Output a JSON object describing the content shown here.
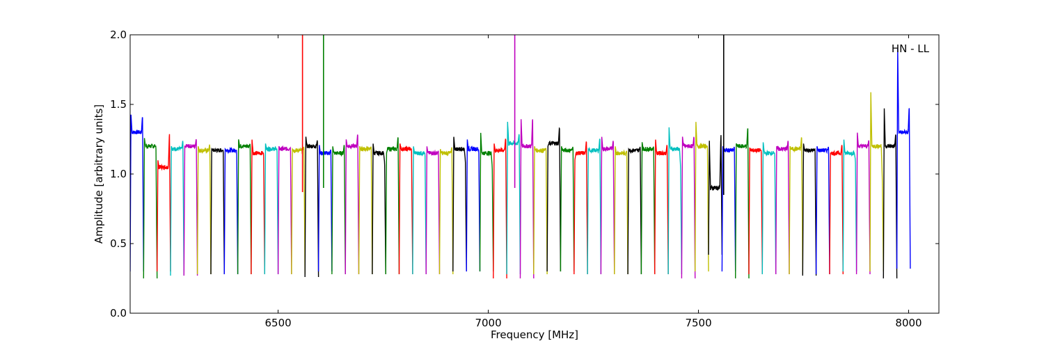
{
  "chart_data": {
    "type": "line",
    "title": "",
    "annotation": "HN - LL",
    "xlabel": "Frequency [MHz]",
    "ylabel": "Amplitude [arbitrary units]",
    "xlim": [
      6148,
      8072
    ],
    "ylim": [
      0.0,
      2.0
    ],
    "xticks": [
      6500,
      7000,
      7500,
      8000
    ],
    "xtick_labels": [
      "6500",
      "7000",
      "7500",
      "8000"
    ],
    "yticks": [
      0.0,
      0.5,
      1.0,
      1.5,
      2.0
    ],
    "ytick_labels": [
      "0.0",
      "0.5",
      "1.0",
      "1.5",
      "2.0"
    ],
    "grid": false,
    "legend": "none",
    "color_cycle": [
      "#0000ff",
      "#007f00",
      "#ff0000",
      "#00bfbf",
      "#bf00bf",
      "#bfbf00",
      "#000000"
    ],
    "channel_width_mhz": 32,
    "channels": [
      {
        "start": 6148,
        "color": "#0000ff",
        "peak_left": 1.43,
        "peak_right": 1.43,
        "plateau": 1.3,
        "min": 0.3
      },
      {
        "start": 6180,
        "color": "#007f00",
        "peak_left": 1.26,
        "peak_right": 1.2,
        "plateau": 1.2,
        "min": 0.25
      },
      {
        "start": 6212,
        "color": "#ff0000",
        "peak_left": 1.1,
        "peak_right": 1.31,
        "plateau": 1.05,
        "min": 0.3
      },
      {
        "start": 6244,
        "color": "#00bfbf",
        "peak_left": 1.2,
        "peak_right": 1.25,
        "plateau": 1.18,
        "min": 0.27
      },
      {
        "start": 6276,
        "color": "#bf00bf",
        "peak_left": 1.2,
        "peak_right": 1.26,
        "plateau": 1.2,
        "min": 0.27
      },
      {
        "start": 6308,
        "color": "#bfbf00",
        "peak_left": 1.2,
        "peak_right": 1.22,
        "plateau": 1.17,
        "min": 0.28
      },
      {
        "start": 6340,
        "color": "#000000",
        "peak_left": 1.18,
        "peak_right": 1.17,
        "plateau": 1.17,
        "min": 0.28
      },
      {
        "start": 6372,
        "color": "#0000ff",
        "peak_left": 1.18,
        "peak_right": 1.17,
        "plateau": 1.17,
        "min": 0.28
      },
      {
        "start": 6404,
        "color": "#007f00",
        "peak_left": 1.25,
        "peak_right": 1.22,
        "plateau": 1.2,
        "min": 0.28
      },
      {
        "start": 6436,
        "color": "#ff0000",
        "peak_left": 1.25,
        "peak_right": 1.15,
        "plateau": 1.15,
        "min": 0.28
      },
      {
        "start": 6468,
        "color": "#00bfbf",
        "peak_left": 1.22,
        "peak_right": 1.18,
        "plateau": 1.18,
        "min": 0.28
      },
      {
        "start": 6500,
        "color": "#bf00bf",
        "peak_left": 1.2,
        "peak_right": 1.19,
        "plateau": 1.18,
        "min": 0.28
      },
      {
        "start": 6532,
        "color": "#bfbf00",
        "peak_left": 1.18,
        "peak_right": 1.2,
        "plateau": 1.17,
        "min": 0.28
      },
      {
        "start": 6564,
        "color": "#000000",
        "peak_left": 1.27,
        "peak_right": 1.25,
        "plateau": 1.2,
        "min": 0.26
      },
      {
        "start": 6596,
        "color": "#0000ff",
        "peak_left": 1.21,
        "peak_right": 1.18,
        "plateau": 1.15,
        "min": 0.3
      },
      {
        "start": 6628,
        "color": "#007f00",
        "peak_left": 1.2,
        "peak_right": 1.22,
        "plateau": 1.15,
        "min": 0.28
      },
      {
        "start": 6660,
        "color": "#bf00bf",
        "peak_left": 1.25,
        "peak_right": 1.3,
        "plateau": 1.2,
        "min": 0.28
      },
      {
        "start": 6692,
        "color": "#bfbf00",
        "peak_left": 1.2,
        "peak_right": 1.2,
        "plateau": 1.18,
        "min": 0.28
      },
      {
        "start": 6724,
        "color": "#000000",
        "peak_left": 1.22,
        "peak_right": 1.08,
        "plateau": 1.15,
        "min": 0.28
      },
      {
        "start": 6756,
        "color": "#007f00",
        "peak_left": 1.15,
        "peak_right": 1.28,
        "plateau": 1.18,
        "min": 0.28
      },
      {
        "start": 6788,
        "color": "#ff0000",
        "peak_left": 1.22,
        "peak_right": 1.18,
        "plateau": 1.18,
        "min": 0.28
      },
      {
        "start": 6820,
        "color": "#00bfbf",
        "peak_left": 1.2,
        "peak_right": 1.15,
        "plateau": 1.15,
        "min": 0.28
      },
      {
        "start": 6852,
        "color": "#bf00bf",
        "peak_left": 1.2,
        "peak_right": 1.17,
        "plateau": 1.15,
        "min": 0.28
      },
      {
        "start": 6884,
        "color": "#bfbf00",
        "peak_left": 1.18,
        "peak_right": 1.2,
        "plateau": 1.15,
        "min": 0.28
      },
      {
        "start": 6916,
        "color": "#000000",
        "peak_left": 1.27,
        "peak_right": 1.1,
        "plateau": 1.18,
        "min": 0.3
      },
      {
        "start": 6948,
        "color": "#0000ff",
        "peak_left": 1.25,
        "peak_right": 1.17,
        "plateau": 1.18,
        "min": 0.3
      },
      {
        "start": 6980,
        "color": "#007f00",
        "peak_left": 1.3,
        "peak_right": 1.05,
        "plateau": 1.15,
        "min": 0.3
      },
      {
        "start": 7012,
        "color": "#ff0000",
        "peak_left": 1.22,
        "peak_right": 1.27,
        "plateau": 1.17,
        "min": 0.25
      },
      {
        "start": 7044,
        "color": "#00bfbf",
        "peak_left": 1.38,
        "peak_right": 1.3,
        "plateau": 1.22,
        "min": 0.28
      },
      {
        "start": 7076,
        "color": "#bf00bf",
        "peak_left": 1.4,
        "peak_right": 1.42,
        "plateau": 1.2,
        "min": 0.25
      },
      {
        "start": 7108,
        "color": "#bfbf00",
        "peak_left": 1.2,
        "peak_right": 1.19,
        "plateau": 1.17,
        "min": 0.28
      },
      {
        "start": 7140,
        "color": "#000000",
        "peak_left": 1.2,
        "peak_right": 1.35,
        "plateau": 1.22,
        "min": 0.3
      },
      {
        "start": 7172,
        "color": "#007f00",
        "peak_left": 1.2,
        "peak_right": 1.2,
        "plateau": 1.17,
        "min": 0.3
      },
      {
        "start": 7204,
        "color": "#ff0000",
        "peak_left": 1.1,
        "peak_right": 1.25,
        "plateau": 1.15,
        "min": 0.28
      },
      {
        "start": 7236,
        "color": "#00bfbf",
        "peak_left": 1.18,
        "peak_right": 1.27,
        "plateau": 1.17,
        "min": 0.28
      },
      {
        "start": 7268,
        "color": "#bf00bf",
        "peak_left": 1.27,
        "peak_right": 1.25,
        "plateau": 1.18,
        "min": 0.28
      },
      {
        "start": 7300,
        "color": "#bfbf00",
        "peak_left": 1.2,
        "peak_right": 1.17,
        "plateau": 1.15,
        "min": 0.28
      },
      {
        "start": 7332,
        "color": "#000000",
        "peak_left": 1.18,
        "peak_right": 1.2,
        "plateau": 1.17,
        "min": 0.28
      },
      {
        "start": 7364,
        "color": "#007f00",
        "peak_left": 1.23,
        "peak_right": 1.2,
        "plateau": 1.18,
        "min": 0.28
      },
      {
        "start": 7396,
        "color": "#ff0000",
        "peak_left": 1.25,
        "peak_right": 1.22,
        "plateau": 1.15,
        "min": 0.28
      },
      {
        "start": 7428,
        "color": "#00bfbf",
        "peak_left": 1.34,
        "peak_right": 1.05,
        "plateau": 1.18,
        "min": 0.28
      },
      {
        "start": 7460,
        "color": "#bf00bf",
        "peak_left": 1.27,
        "peak_right": 1.28,
        "plateau": 1.2,
        "min": 0.25
      },
      {
        "start": 7492,
        "color": "#bfbf00",
        "peak_left": 1.38,
        "peak_right": 1.2,
        "plateau": 1.2,
        "min": 0.3
      },
      {
        "start": 7524,
        "color": "#000000",
        "peak_left": 1.25,
        "peak_right": 1.3,
        "plateau": 0.9,
        "min": 0.42
      },
      {
        "start": 7556,
        "color": "#0000ff",
        "peak_left": 1.2,
        "peak_right": 1.2,
        "plateau": 1.17,
        "min": 0.3
      },
      {
        "start": 7588,
        "color": "#007f00",
        "peak_left": 1.22,
        "peak_right": 1.35,
        "plateau": 1.2,
        "min": 0.25
      },
      {
        "start": 7620,
        "color": "#ff0000",
        "peak_left": 1.19,
        "peak_right": 1.17,
        "plateau": 1.17,
        "min": 0.28
      },
      {
        "start": 7652,
        "color": "#00bfbf",
        "peak_left": 1.23,
        "peak_right": 1.15,
        "plateau": 1.15,
        "min": 0.28
      },
      {
        "start": 7684,
        "color": "#bf00bf",
        "peak_left": 1.2,
        "peak_right": 1.25,
        "plateau": 1.18,
        "min": 0.28
      },
      {
        "start": 7716,
        "color": "#bfbf00",
        "peak_left": 1.2,
        "peak_right": 1.28,
        "plateau": 1.18,
        "min": 0.28
      },
      {
        "start": 7748,
        "color": "#000000",
        "peak_left": 1.22,
        "peak_right": 1.18,
        "plateau": 1.17,
        "min": 0.27
      },
      {
        "start": 7780,
        "color": "#0000ff",
        "peak_left": 1.2,
        "peak_right": 1.2,
        "plateau": 1.17,
        "min": 0.28
      },
      {
        "start": 7812,
        "color": "#ff0000",
        "peak_left": 1.15,
        "peak_right": 1.22,
        "plateau": 1.15,
        "min": 0.28
      },
      {
        "start": 7844,
        "color": "#00bfbf",
        "peak_left": 1.25,
        "peak_right": 1.1,
        "plateau": 1.15,
        "min": 0.3
      },
      {
        "start": 7876,
        "color": "#bf00bf",
        "peak_left": 1.3,
        "peak_right": 1.25,
        "plateau": 1.2,
        "min": 0.28
      },
      {
        "start": 7908,
        "color": "#bfbf00",
        "peak_left": 1.6,
        "peak_right": 0.95,
        "plateau": 1.2,
        "min": 0.3
      },
      {
        "start": 7940,
        "color": "#000000",
        "peak_left": 1.48,
        "peak_right": 1.3,
        "plateau": 1.2,
        "min": 0.25
      },
      {
        "start": 7972,
        "color": "#0000ff",
        "peak_left": 1.92,
        "peak_right": 1.5,
        "plateau": 1.3,
        "min": 0.32
      }
    ],
    "spikes": [
      {
        "x": 6558,
        "color": "#ff0000",
        "y_top": 2.0,
        "y_bottom": 0.87
      },
      {
        "x": 6608,
        "color": "#007f00",
        "y_top": 2.0,
        "y_bottom": 0.9
      },
      {
        "x": 7063,
        "color": "#bf00bf",
        "y_top": 2.0,
        "y_bottom": 0.9
      },
      {
        "x": 7560,
        "color": "#000000",
        "y_top": 2.0,
        "y_bottom": 0.85
      }
    ]
  }
}
